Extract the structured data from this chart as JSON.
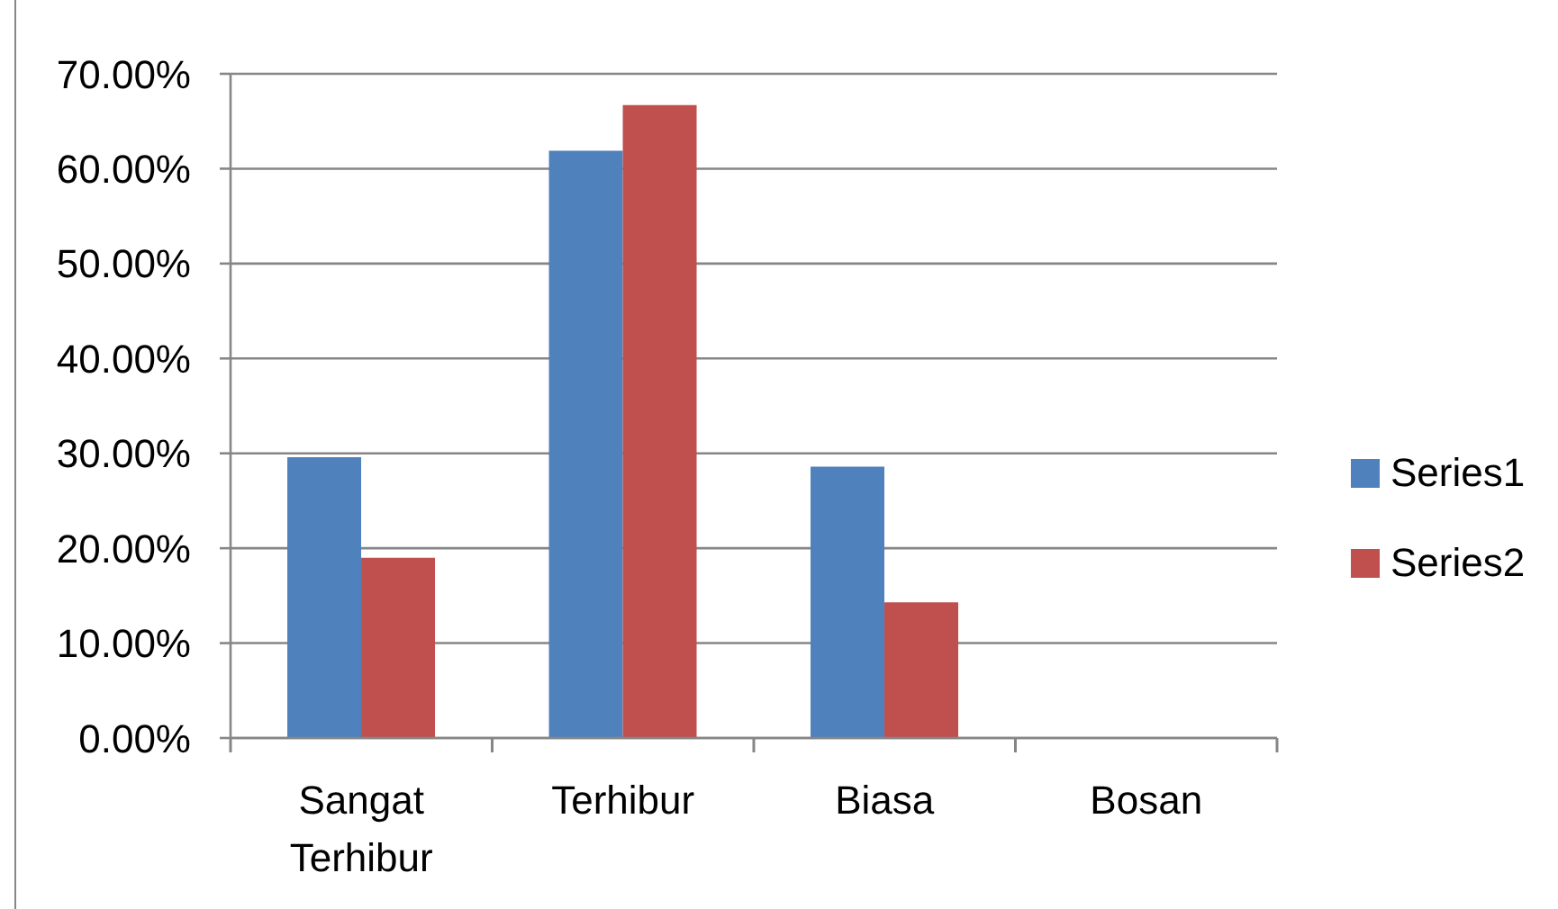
{
  "chart_data": {
    "type": "bar",
    "categories": [
      "Sangat Terhibur",
      "Terhibur",
      "Biasa",
      "Bosan"
    ],
    "series": [
      {
        "name": "Series1",
        "color": "#4f81bd",
        "values": [
          29.6,
          61.9,
          28.6,
          0
        ]
      },
      {
        "name": "Series2",
        "color": "#c0504d",
        "values": [
          19.0,
          66.7,
          14.3,
          0
        ]
      }
    ],
    "ylim": [
      0,
      70
    ],
    "yticks": [
      {
        "value": 0,
        "label": "0.00%"
      },
      {
        "value": 10,
        "label": "10.00%"
      },
      {
        "value": 20,
        "label": "20.00%"
      },
      {
        "value": 30,
        "label": "30.00%"
      },
      {
        "value": 40,
        "label": "40.00%"
      },
      {
        "value": 50,
        "label": "50.00%"
      },
      {
        "value": 60,
        "label": "60.00%"
      },
      {
        "value": 70,
        "label": "70.00%"
      }
    ],
    "grid": "y",
    "legend": "right"
  }
}
